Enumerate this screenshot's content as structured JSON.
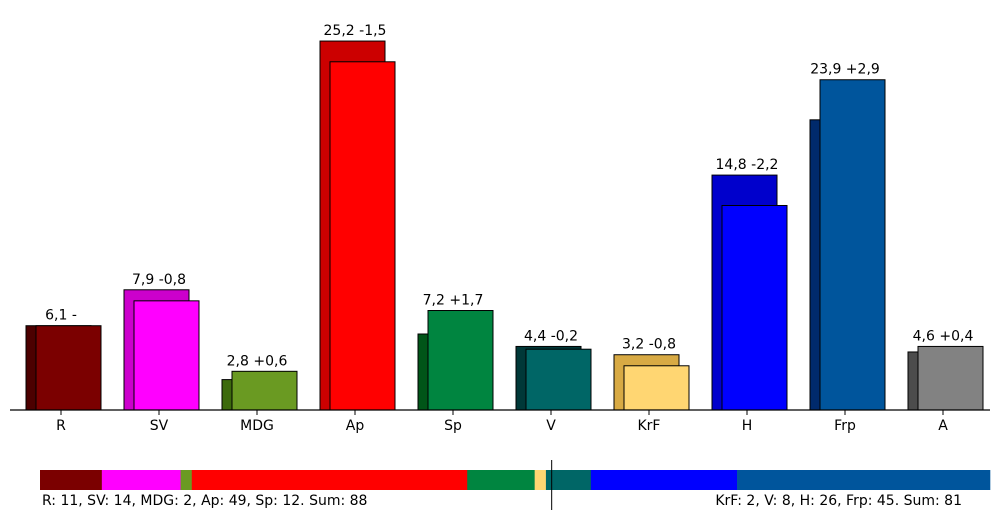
{
  "chart_data": {
    "type": "bar",
    "categories": [
      "R",
      "SV",
      "MDG",
      "Ap",
      "Sp",
      "V",
      "KrF",
      "H",
      "Frp",
      "A"
    ],
    "series": [
      {
        "values": [
          6.1,
          8.7,
          2.2,
          26.7,
          5.5,
          4.6,
          4.0,
          17.0,
          21.0,
          4.2
        ]
      },
      {
        "values": [
          6.1,
          7.9,
          2.8,
          25.2,
          7.2,
          4.4,
          3.2,
          14.8,
          23.9,
          4.6
        ]
      }
    ],
    "data_labels": [
      "6,1 -",
      "7,9 -0,8",
      "2,8 +0,6",
      "25,2 -1,5",
      "7,2 +1,7",
      "4,4 -0,2",
      "3,2 -0,8",
      "14,8 -2,2",
      "23,9 +2,9",
      "4,6 +0,4"
    ],
    "ylim": [
      0,
      27.5
    ],
    "colors": {
      "current": [
        "#7b0000",
        "#ff00ff",
        "#6a9a22",
        "#ff0000",
        "#008540",
        "#006666",
        "#ffd672",
        "#0000ff",
        "#00559c",
        "#828282"
      ],
      "previous": [
        "#4c0000",
        "#cc00cc",
        "#3c6a0c",
        "#cc0000",
        "#005518",
        "#003838",
        "#d8aa44",
        "#0000cc",
        "#002a6c",
        "#4c4c4c"
      ]
    },
    "seat_bar": {
      "left": {
        "segments": [
          {
            "party": "R",
            "seats": 11,
            "color": "#7b0000"
          },
          {
            "party": "SV",
            "seats": 14,
            "color": "#ff00ff"
          },
          {
            "party": "MDG",
            "seats": 2,
            "color": "#6a9a22"
          },
          {
            "party": "Ap",
            "seats": 49,
            "color": "#ff0000"
          },
          {
            "party": "Sp",
            "seats": 12,
            "color": "#008540"
          }
        ],
        "label": "R: 11, SV: 14, MDG: 2, Ap: 49, Sp: 12. Sum: 88"
      },
      "right": {
        "segments": [
          {
            "party": "KrF",
            "seats": 2,
            "color": "#ffd672"
          },
          {
            "party": "V",
            "seats": 8,
            "color": "#006666"
          },
          {
            "party": "H",
            "seats": 26,
            "color": "#0000ff"
          },
          {
            "party": "Frp",
            "seats": 45,
            "color": "#00559c"
          }
        ],
        "label": "KrF: 2, V: 8, H: 26, Frp: 45. Sum: 81"
      }
    }
  }
}
